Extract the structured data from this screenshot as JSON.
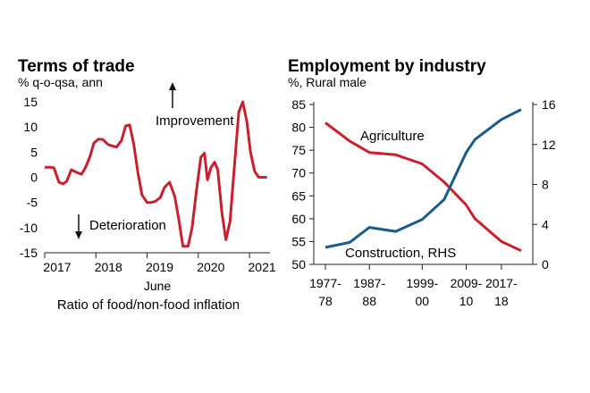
{
  "chart_data": [
    {
      "type": "line",
      "title": "Terms of trade",
      "subtitle": "% q-o-qsa, ann",
      "xlabel": "Ratio of food/non-food inflation",
      "x_extra_label": "June",
      "ylim": [
        -15,
        15
      ],
      "yticks": [
        "15",
        "10",
        "5",
        "0",
        "-5",
        "-10",
        "-15"
      ],
      "xticks": [
        "2017",
        "2018",
        "2019",
        "2020",
        "2021"
      ],
      "annotations": [
        "Improvement",
        "Deterioration"
      ],
      "color": "#c8202f",
      "series": [
        {
          "name": "Terms of trade",
          "x": [
            2017.0,
            2017.1,
            2017.18,
            2017.28,
            2017.36,
            2017.43,
            2017.52,
            2017.62,
            2017.72,
            2017.8,
            2017.88,
            2017.96,
            2018.05,
            2018.14,
            2018.24,
            2018.4,
            2018.5,
            2018.58,
            2018.66,
            2018.74,
            2018.82,
            2018.9,
            2019.0,
            2019.08,
            2019.16,
            2019.26,
            2019.34,
            2019.44,
            2019.54,
            2019.62,
            2019.7,
            2019.8,
            2019.88,
            2019.96,
            2020.05,
            2020.12,
            2020.18,
            2020.25,
            2020.32,
            2020.38,
            2020.46,
            2020.54,
            2020.62,
            2020.7,
            2020.79,
            2020.87,
            2020.95,
            2021.02,
            2021.1,
            2021.18,
            2021.26,
            2021.34
          ],
          "values": [
            2,
            2,
            1.9,
            -1,
            -1.3,
            -0.8,
            1.5,
            1,
            0.6,
            2,
            4,
            6.8,
            7.6,
            7.5,
            6.5,
            6,
            7.3,
            10.2,
            10.4,
            6.5,
            1,
            -3.5,
            -5,
            -5,
            -4.8,
            -4,
            -2,
            -1,
            -3.8,
            -8.5,
            -13.7,
            -13.7,
            -10,
            -3,
            4,
            4.8,
            -0.5,
            2,
            3,
            1.5,
            -7,
            -12.4,
            -8.8,
            1.5,
            13,
            15,
            11,
            5,
            1.2,
            0,
            0,
            0
          ]
        }
      ]
    },
    {
      "type": "line",
      "title": "Employment by industry",
      "subtitle": "%, Rural male",
      "ylim": [
        50,
        85
      ],
      "ylim_right": [
        0,
        16
      ],
      "yticks_left": [
        "85",
        "80",
        "75",
        "70",
        "65",
        "60",
        "55",
        "50"
      ],
      "yticks_right": [
        "16",
        "12",
        "8",
        "4",
        "0"
      ],
      "xticks": [
        {
          "top": "1977-",
          "bottom": "78"
        },
        {
          "top": "1987-",
          "bottom": "88"
        },
        {
          "top": "1999-",
          "bottom": "00"
        },
        {
          "top": "2009-",
          "bottom": "10"
        },
        {
          "top": "2017-",
          "bottom": "18"
        }
      ],
      "series": [
        {
          "name": "Agriculture",
          "axis": "left",
          "color": "#c8202f",
          "x": [
            1977.5,
            1983,
            1987.5,
            1993.5,
            1999.5,
            2004.5,
            2009.5,
            2011.5,
            2017.5,
            2022
          ],
          "values": [
            81,
            77,
            74.5,
            74,
            72,
            68,
            63,
            60,
            55,
            53
          ]
        },
        {
          "name": "Construction, RHS",
          "axis": "right",
          "color": "#1a5a8a",
          "x": [
            1977.5,
            1983,
            1987.5,
            1993.5,
            1999.5,
            2004.5,
            2009.5,
            2011.5,
            2017.5,
            2022
          ],
          "values": [
            1.7,
            2.2,
            3.7,
            3.3,
            4.5,
            6.5,
            11.2,
            12.5,
            14.5,
            15.5
          ]
        }
      ]
    }
  ]
}
